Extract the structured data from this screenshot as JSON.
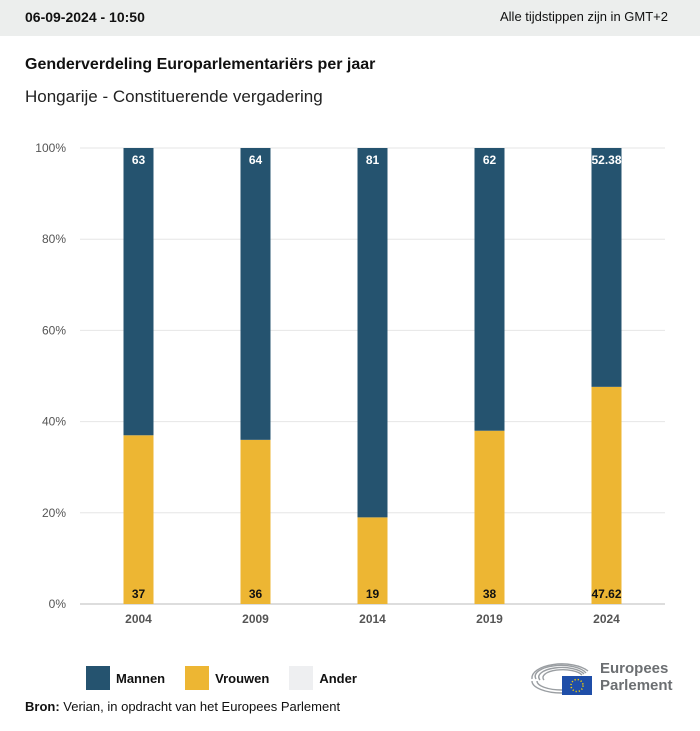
{
  "header": {
    "timestamp": "06-09-2024 - 10:50",
    "timezone": "Alle tijdstippen zijn in GMT+2"
  },
  "title": "Genderverdeling Europarlementariërs per jaar",
  "subtitle": "Hongarije - Constituerende vergadering",
  "colors": {
    "mannen": "#25536f",
    "vrouwen": "#edb633",
    "ander": "#eeeff1"
  },
  "chart_data": {
    "type": "bar",
    "stacked": true,
    "categories": [
      "2004",
      "2009",
      "2014",
      "2019",
      "2024"
    ],
    "series": [
      {
        "name": "Vrouwen",
        "values": [
          37,
          36,
          19,
          38,
          47.62
        ],
        "labels": [
          "37",
          "36",
          "19",
          "38",
          "47.62"
        ]
      },
      {
        "name": "Mannen",
        "values": [
          63,
          64,
          81,
          62,
          52.38
        ],
        "labels": [
          "63",
          "64",
          "81",
          "62",
          "52.38"
        ]
      },
      {
        "name": "Ander",
        "values": [
          0,
          0,
          0,
          0,
          0
        ]
      }
    ],
    "yticks": [
      "0%",
      "20%",
      "40%",
      "60%",
      "80%",
      "100%"
    ],
    "ylim": [
      0,
      100
    ],
    "legend": "bottom-left",
    "grid": true
  },
  "legend": [
    "Mannen",
    "Vrouwen",
    "Ander"
  ],
  "source": {
    "label": "Bron:",
    "text": " Verian, in opdracht van het Europees Parlement"
  },
  "logo": {
    "line1": "Europees",
    "line2": "Parlement"
  }
}
